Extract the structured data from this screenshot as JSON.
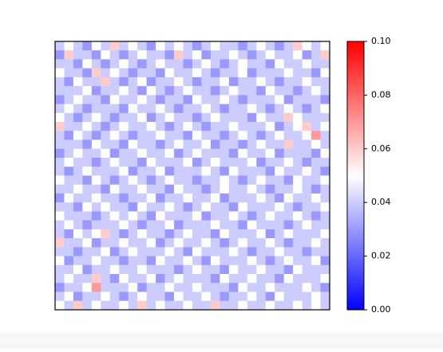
{
  "chart_data": {
    "type": "heatmap",
    "colormap": "bwr",
    "clim": [
      0,
      0.1
    ],
    "yticks": [
      {
        "value": 0,
        "label": "0.00"
      },
      0.02,
      0.04,
      0.06,
      0.08,
      {
        "value": 0.1,
        "label": "0.10"
      }
    ],
    "z": [
      [
        0.04,
        0.05,
        0.04,
        0.03,
        0.05,
        0.04,
        0.06,
        0.04,
        0.05,
        0.04,
        0.03,
        0.05,
        0.04,
        0.05,
        0.04,
        0.03,
        0.04,
        0.05,
        0.04,
        0.04,
        0.03,
        0.04,
        0.05,
        0.04,
        0.03,
        0.04,
        0.06,
        0.05,
        0.04,
        0.05
      ],
      [
        0.03,
        0.06,
        0.04,
        0.04,
        0.03,
        0.05,
        0.04,
        0.03,
        0.04,
        0.05,
        0.04,
        0.04,
        0.03,
        0.06,
        0.04,
        0.05,
        0.03,
        0.04,
        0.04,
        0.05,
        0.04,
        0.03,
        0.04,
        0.05,
        0.04,
        0.04,
        0.05,
        0.03,
        0.04,
        0.06
      ],
      [
        0.04,
        0.04,
        0.03,
        0.05,
        0.04,
        0.03,
        0.04,
        0.05,
        0.04,
        0.03,
        0.04,
        0.05,
        0.04,
        0.04,
        0.03,
        0.04,
        0.05,
        0.04,
        0.03,
        0.04,
        0.05,
        0.04,
        0.04,
        0.03,
        0.05,
        0.04,
        0.04,
        0.05,
        0.04,
        0.04
      ],
      [
        0.05,
        0.04,
        0.04,
        0.03,
        0.06,
        0.04,
        0.05,
        0.04,
        0.03,
        0.04,
        0.04,
        0.03,
        0.05,
        0.04,
        0.04,
        0.05,
        0.04,
        0.03,
        0.04,
        0.04,
        0.05,
        0.03,
        0.04,
        0.04,
        0.04,
        0.05,
        0.04,
        0.04,
        0.03,
        0.05
      ],
      [
        0.04,
        0.03,
        0.05,
        0.04,
        0.04,
        0.06,
        0.04,
        0.03,
        0.04,
        0.05,
        0.03,
        0.04,
        0.04,
        0.05,
        0.04,
        0.03,
        0.04,
        0.04,
        0.05,
        0.03,
        0.04,
        0.04,
        0.05,
        0.04,
        0.03,
        0.04,
        0.04,
        0.05,
        0.04,
        0.04
      ],
      [
        0.04,
        0.04,
        0.04,
        0.05,
        0.03,
        0.04,
        0.04,
        0.05,
        0.04,
        0.03,
        0.05,
        0.04,
        0.03,
        0.04,
        0.05,
        0.04,
        0.04,
        0.03,
        0.04,
        0.05,
        0.04,
        0.04,
        0.03,
        0.05,
        0.04,
        0.04,
        0.03,
        0.04,
        0.05,
        0.04
      ],
      [
        0.03,
        0.04,
        0.05,
        0.04,
        0.04,
        0.03,
        0.05,
        0.04,
        0.04,
        0.05,
        0.04,
        0.03,
        0.04,
        0.04,
        0.03,
        0.05,
        0.04,
        0.04,
        0.05,
        0.04,
        0.03,
        0.04,
        0.04,
        0.04,
        0.05,
        0.03,
        0.04,
        0.04,
        0.04,
        0.03
      ],
      [
        0.04,
        0.05,
        0.04,
        0.03,
        0.04,
        0.04,
        0.04,
        0.03,
        0.05,
        0.04,
        0.04,
        0.05,
        0.04,
        0.03,
        0.04,
        0.04,
        0.05,
        0.04,
        0.03,
        0.04,
        0.04,
        0.05,
        0.04,
        0.03,
        0.04,
        0.05,
        0.04,
        0.03,
        0.04,
        0.05
      ],
      [
        0.05,
        0.04,
        0.03,
        0.04,
        0.05,
        0.04,
        0.03,
        0.04,
        0.04,
        0.05,
        0.03,
        0.04,
        0.05,
        0.04,
        0.04,
        0.03,
        0.04,
        0.05,
        0.04,
        0.04,
        0.04,
        0.03,
        0.05,
        0.04,
        0.04,
        0.06,
        0.05,
        0.04,
        0.04,
        0.04
      ],
      [
        0.06,
        0.04,
        0.04,
        0.05,
        0.04,
        0.03,
        0.04,
        0.05,
        0.04,
        0.04,
        0.05,
        0.04,
        0.03,
        0.04,
        0.05,
        0.04,
        0.03,
        0.04,
        0.04,
        0.05,
        0.04,
        0.04,
        0.04,
        0.05,
        0.03,
        0.04,
        0.05,
        0.06,
        0.04,
        0.05
      ],
      [
        0.04,
        0.03,
        0.05,
        0.04,
        0.03,
        0.04,
        0.05,
        0.04,
        0.03,
        0.04,
        0.04,
        0.05,
        0.04,
        0.04,
        0.03,
        0.05,
        0.04,
        0.04,
        0.03,
        0.04,
        0.05,
        0.04,
        0.03,
        0.04,
        0.05,
        0.04,
        0.04,
        0.05,
        0.07,
        0.04
      ],
      [
        0.04,
        0.04,
        0.04,
        0.03,
        0.05,
        0.04,
        0.04,
        0.03,
        0.05,
        0.04,
        0.04,
        0.03,
        0.04,
        0.05,
        0.04,
        0.04,
        0.05,
        0.03,
        0.04,
        0.04,
        0.03,
        0.04,
        0.05,
        0.04,
        0.04,
        0.06,
        0.04,
        0.04,
        0.05,
        0.04
      ],
      [
        0.03,
        0.04,
        0.05,
        0.04,
        0.04,
        0.05,
        0.03,
        0.04,
        0.04,
        0.05,
        0.04,
        0.04,
        0.05,
        0.03,
        0.04,
        0.05,
        0.04,
        0.04,
        0.04,
        0.03,
        0.05,
        0.04,
        0.04,
        0.05,
        0.03,
        0.04,
        0.04,
        0.04,
        0.03,
        0.05
      ],
      [
        0.04,
        0.05,
        0.04,
        0.04,
        0.03,
        0.04,
        0.05,
        0.04,
        0.04,
        0.03,
        0.05,
        0.04,
        0.04,
        0.04,
        0.05,
        0.03,
        0.04,
        0.05,
        0.04,
        0.04,
        0.04,
        0.05,
        0.03,
        0.04,
        0.04,
        0.05,
        0.04,
        0.03,
        0.04,
        0.04
      ],
      [
        0.04,
        0.03,
        0.04,
        0.05,
        0.04,
        0.04,
        0.04,
        0.05,
        0.03,
        0.04,
        0.04,
        0.05,
        0.03,
        0.04,
        0.04,
        0.04,
        0.05,
        0.04,
        0.03,
        0.05,
        0.04,
        0.04,
        0.04,
        0.03,
        0.05,
        0.04,
        0.04,
        0.05,
        0.04,
        0.03
      ],
      [
        0.05,
        0.04,
        0.04,
        0.03,
        0.05,
        0.04,
        0.03,
        0.04,
        0.05,
        0.04,
        0.03,
        0.04,
        0.05,
        0.04,
        0.04,
        0.03,
        0.04,
        0.04,
        0.05,
        0.04,
        0.03,
        0.04,
        0.05,
        0.04,
        0.04,
        0.03,
        0.05,
        0.04,
        0.04,
        0.05
      ],
      [
        0.04,
        0.04,
        0.05,
        0.04,
        0.04,
        0.03,
        0.05,
        0.04,
        0.04,
        0.05,
        0.04,
        0.04,
        0.03,
        0.05,
        0.04,
        0.04,
        0.03,
        0.04,
        0.05,
        0.04,
        0.04,
        0.05,
        0.04,
        0.03,
        0.04,
        0.04,
        0.05,
        0.04,
        0.03,
        0.04
      ],
      [
        0.03,
        0.05,
        0.04,
        0.04,
        0.05,
        0.04,
        0.04,
        0.03,
        0.04,
        0.04,
        0.05,
        0.03,
        0.04,
        0.04,
        0.05,
        0.04,
        0.04,
        0.05,
        0.03,
        0.04,
        0.04,
        0.04,
        0.05,
        0.04,
        0.03,
        0.05,
        0.04,
        0.04,
        0.05,
        0.04
      ],
      [
        0.04,
        0.04,
        0.03,
        0.05,
        0.04,
        0.05,
        0.04,
        0.04,
        0.03,
        0.05,
        0.04,
        0.04,
        0.05,
        0.04,
        0.03,
        0.04,
        0.05,
        0.04,
        0.04,
        0.03,
        0.05,
        0.04,
        0.04,
        0.04,
        0.05,
        0.04,
        0.03,
        0.04,
        0.04,
        0.05
      ],
      [
        0.05,
        0.04,
        0.04,
        0.04,
        0.03,
        0.04,
        0.05,
        0.04,
        0.05,
        0.04,
        0.03,
        0.05,
        0.04,
        0.04,
        0.04,
        0.05,
        0.03,
        0.04,
        0.04,
        0.05,
        0.04,
        0.03,
        0.04,
        0.05,
        0.04,
        0.04,
        0.05,
        0.04,
        0.03,
        0.04
      ],
      [
        0.04,
        0.05,
        0.04,
        0.03,
        0.04,
        0.04,
        0.04,
        0.05,
        0.04,
        0.03,
        0.04,
        0.04,
        0.05,
        0.03,
        0.04,
        0.04,
        0.04,
        0.05,
        0.04,
        0.04,
        0.03,
        0.05,
        0.04,
        0.04,
        0.04,
        0.03,
        0.04,
        0.05,
        0.04,
        0.04
      ],
      [
        0.04,
        0.03,
        0.05,
        0.04,
        0.05,
        0.06,
        0.04,
        0.03,
        0.04,
        0.05,
        0.04,
        0.04,
        0.03,
        0.04,
        0.05,
        0.04,
        0.04,
        0.03,
        0.05,
        0.04,
        0.04,
        0.04,
        0.05,
        0.03,
        0.04,
        0.05,
        0.04,
        0.04,
        0.04,
        0.05
      ],
      [
        0.06,
        0.04,
        0.04,
        0.05,
        0.03,
        0.04,
        0.04,
        0.05,
        0.04,
        0.04,
        0.05,
        0.03,
        0.04,
        0.05,
        0.04,
        0.04,
        0.05,
        0.04,
        0.03,
        0.04,
        0.05,
        0.04,
        0.04,
        0.05,
        0.04,
        0.03,
        0.04,
        0.04,
        0.05,
        0.04
      ],
      [
        0.04,
        0.04,
        0.03,
        0.04,
        0.04,
        0.05,
        0.03,
        0.04,
        0.05,
        0.04,
        0.04,
        0.04,
        0.05,
        0.04,
        0.03,
        0.05,
        0.04,
        0.04,
        0.04,
        0.05,
        0.04,
        0.03,
        0.04,
        0.04,
        0.05,
        0.04,
        0.04,
        0.03,
        0.04,
        0.04
      ],
      [
        0.05,
        0.03,
        0.04,
        0.04,
        0.05,
        0.04,
        0.04,
        0.03,
        0.04,
        0.04,
        0.03,
        0.05,
        0.04,
        0.04,
        0.05,
        0.04,
        0.03,
        0.05,
        0.04,
        0.04,
        0.04,
        0.05,
        0.04,
        0.03,
        0.04,
        0.05,
        0.04,
        0.04,
        0.05,
        0.03
      ],
      [
        0.04,
        0.04,
        0.05,
        0.03,
        0.04,
        0.04,
        0.05,
        0.04,
        0.04,
        0.05,
        0.04,
        0.04,
        0.04,
        0.03,
        0.04,
        0.05,
        0.04,
        0.04,
        0.03,
        0.05,
        0.04,
        0.04,
        0.05,
        0.04,
        0.04,
        0.03,
        0.05,
        0.04,
        0.04,
        0.04
      ],
      [
        0.04,
        0.05,
        0.04,
        0.04,
        0.06,
        0.04,
        0.03,
        0.05,
        0.04,
        0.04,
        0.05,
        0.03,
        0.04,
        0.05,
        0.04,
        0.04,
        0.04,
        0.03,
        0.05,
        0.04,
        0.04,
        0.05,
        0.04,
        0.04,
        0.03,
        0.05,
        0.04,
        0.04,
        0.04,
        0.05
      ],
      [
        0.03,
        0.04,
        0.04,
        0.05,
        0.07,
        0.04,
        0.04,
        0.04,
        0.05,
        0.03,
        0.04,
        0.04,
        0.05,
        0.04,
        0.04,
        0.05,
        0.04,
        0.04,
        0.04,
        0.03,
        0.05,
        0.04,
        0.04,
        0.05,
        0.04,
        0.04,
        0.04,
        0.05,
        0.04,
        0.03
      ],
      [
        0.04,
        0.05,
        0.03,
        0.04,
        0.04,
        0.05,
        0.04,
        0.03,
        0.04,
        0.05,
        0.04,
        0.04,
        0.03,
        0.05,
        0.04,
        0.04,
        0.05,
        0.04,
        0.03,
        0.04,
        0.04,
        0.05,
        0.04,
        0.03,
        0.05,
        0.04,
        0.04,
        0.04,
        0.05,
        0.04
      ],
      [
        0.05,
        0.04,
        0.06,
        0.04,
        0.05,
        0.04,
        0.04,
        0.05,
        0.04,
        0.06,
        0.04,
        0.05,
        0.04,
        0.04,
        0.05,
        0.04,
        0.04,
        0.06,
        0.04,
        0.04,
        0.05,
        0.04,
        0.04,
        0.05,
        0.04,
        0.04,
        0.05,
        0.04,
        0.05,
        0.04
      ]
    ]
  }
}
